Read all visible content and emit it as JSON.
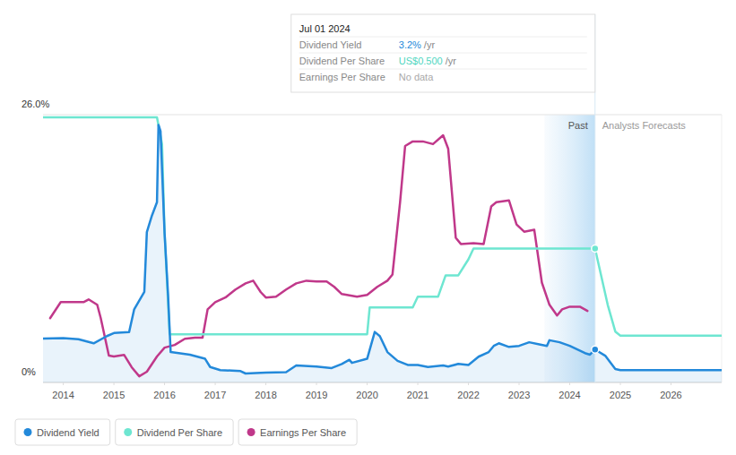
{
  "chart_data": {
    "type": "line",
    "xlim": [
      2013.6,
      2027
    ],
    "xticks": [
      2014,
      2015,
      2016,
      2017,
      2018,
      2019,
      2020,
      2021,
      2022,
      2023,
      2024,
      2025,
      2026
    ],
    "ylim": [
      0,
      26
    ],
    "yticks": [
      {
        "value": 0,
        "label": "0%"
      },
      {
        "value": 26,
        "label": "26.0%"
      }
    ],
    "y2lim": [
      0,
      1
    ],
    "y2ticks": [],
    "grid": true,
    "legend": "bottom-left",
    "series": [
      {
        "name": "Dividend Yield",
        "color": "#2389da",
        "type": "area",
        "x": [
          2013.6,
          2014.0,
          2014.3,
          2014.6,
          2014.86,
          2015.0,
          2015.3,
          2015.4,
          2015.6,
          2015.65,
          2015.75,
          2015.85,
          2015.88,
          2015.92,
          2016.0,
          2016.07,
          2016.12,
          2016.5,
          2016.8,
          2016.9,
          2017.1,
          2017.5,
          2017.6,
          2018.0,
          2018.4,
          2018.6,
          2019.0,
          2019.3,
          2019.5,
          2019.65,
          2019.7,
          2020.0,
          2020.15,
          2020.25,
          2020.4,
          2020.6,
          2020.8,
          2021.0,
          2021.2,
          2021.5,
          2021.6,
          2021.8,
          2022.0,
          2022.2,
          2022.4,
          2022.5,
          2022.6,
          2022.8,
          2023.0,
          2023.2,
          2023.4,
          2023.55,
          2023.6,
          2023.8,
          2024.0,
          2024.3,
          2024.4,
          2024.5,
          2024.7,
          2024.9,
          2025.0,
          2027.0
        ],
        "values": [
          4.25,
          4.3,
          4.2,
          3.8,
          4.5,
          4.8,
          4.9,
          7.1,
          8.8,
          14.6,
          16.2,
          17.5,
          25.0,
          24.4,
          14.5,
          8.4,
          2.95,
          2.7,
          2.3,
          1.5,
          1.2,
          1.1,
          0.87,
          0.95,
          1.0,
          1.65,
          1.55,
          1.4,
          1.8,
          2.2,
          1.9,
          2.3,
          4.9,
          4.5,
          2.95,
          2.1,
          1.7,
          1.7,
          1.5,
          1.65,
          1.55,
          1.8,
          1.7,
          2.5,
          2.95,
          3.55,
          3.8,
          3.45,
          3.55,
          3.9,
          3.7,
          3.55,
          4.1,
          3.9,
          3.55,
          2.85,
          2.7,
          3.2,
          2.6,
          1.3,
          1.2,
          1.2
        ]
      },
      {
        "name": "Dividend Per Share",
        "color": "#6ee6d1",
        "type": "line",
        "axis": "y2",
        "x": [
          2013.6,
          2015.85,
          2015.95,
          2016.0,
          2016.1,
          2020.0,
          2020.05,
          2020.9,
          2021.0,
          2021.4,
          2021.55,
          2021.8,
          2022.0,
          2022.1,
          2024.5,
          2024.75,
          2024.9,
          2025.0,
          2027.0
        ],
        "values": [
          0.99,
          0.99,
          0.89,
          0.56,
          0.18,
          0.18,
          0.28,
          0.28,
          0.32,
          0.32,
          0.4,
          0.4,
          0.46,
          0.5,
          0.5,
          0.29,
          0.19,
          0.175,
          0.175
        ]
      },
      {
        "name": "Earnings Per Share",
        "color": "#c0388a",
        "type": "line",
        "axis": "y2",
        "x": [
          2013.74,
          2013.95,
          2014.2,
          2014.4,
          2014.5,
          2014.67,
          2014.74,
          2014.9,
          2015.0,
          2015.2,
          2015.35,
          2015.5,
          2015.65,
          2015.85,
          2016.0,
          2016.2,
          2016.4,
          2016.6,
          2016.75,
          2016.85,
          2017.0,
          2017.2,
          2017.4,
          2017.6,
          2017.75,
          2017.9,
          2018.0,
          2018.2,
          2018.4,
          2018.6,
          2018.8,
          2019.0,
          2019.2,
          2019.35,
          2019.5,
          2019.8,
          2020.0,
          2020.2,
          2020.4,
          2020.5,
          2020.65,
          2020.75,
          2020.9,
          2021.1,
          2021.3,
          2021.5,
          2021.6,
          2021.75,
          2021.85,
          2022.1,
          2022.3,
          2022.45,
          2022.55,
          2022.8,
          2022.95,
          2023.1,
          2023.3,
          2023.45,
          2023.6,
          2023.75,
          2023.85,
          2024.0,
          2024.2,
          2024.35
        ],
        "values": [
          0.24,
          0.3,
          0.3,
          0.3,
          0.31,
          0.29,
          0.24,
          0.1,
          0.097,
          0.103,
          0.057,
          0.023,
          0.04,
          0.097,
          0.13,
          0.14,
          0.163,
          0.167,
          0.167,
          0.273,
          0.3,
          0.317,
          0.347,
          0.37,
          0.38,
          0.337,
          0.317,
          0.32,
          0.347,
          0.37,
          0.38,
          0.377,
          0.377,
          0.357,
          0.33,
          0.32,
          0.327,
          0.357,
          0.38,
          0.403,
          0.673,
          0.883,
          0.9,
          0.9,
          0.89,
          0.923,
          0.873,
          0.54,
          0.517,
          0.52,
          0.517,
          0.657,
          0.673,
          0.68,
          0.59,
          0.563,
          0.57,
          0.373,
          0.29,
          0.25,
          0.273,
          0.283,
          0.283,
          0.267
        ]
      }
    ],
    "annotations": {
      "tooltip": {
        "date": "Jul 01 2024",
        "x": 2024.5,
        "rows": [
          {
            "label": "Dividend Yield",
            "value": "3.2%",
            "unit": "/yr"
          },
          {
            "label": "Dividend Per Share",
            "value": "US$0.500",
            "unit": "/yr"
          },
          {
            "label": "Earnings Per Share",
            "value": "No data"
          }
        ]
      },
      "past": {
        "label": "Past",
        "x_range": [
          2023.5,
          2024.5
        ]
      },
      "forecast": {
        "label": "Analysts Forecasts"
      }
    }
  }
}
